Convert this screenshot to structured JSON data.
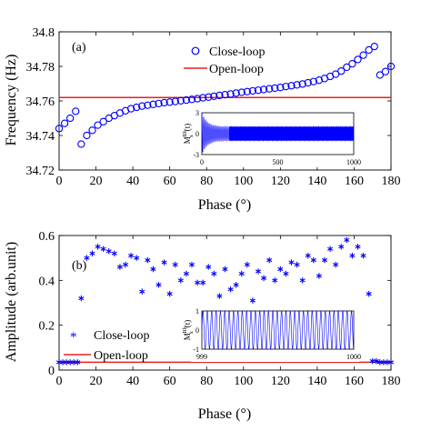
{
  "chart_data": [
    {
      "id": "a",
      "type": "scatter",
      "panel_label": "(a)",
      "xlabel": "Phase (°)",
      "ylabel": "Frequency (Hz)",
      "xlim": [
        0,
        180
      ],
      "ylim": [
        34.72,
        34.8
      ],
      "xticks": [
        0,
        20,
        40,
        60,
        80,
        100,
        120,
        140,
        160,
        180
      ],
      "yticks": [
        34.72,
        34.74,
        34.76,
        34.78,
        34.8
      ],
      "ytick_labels": [
        "34.72",
        "34.74",
        "34.76",
        "34.78",
        "34.8"
      ],
      "legend_position": "top-right",
      "series": [
        {
          "name": "Close-loop",
          "marker": "circle-open",
          "color": "#0000ff",
          "x": [
            0,
            3,
            6,
            9,
            12,
            15,
            18,
            21,
            24,
            27,
            30,
            33,
            36,
            39,
            42,
            45,
            48,
            51,
            54,
            57,
            60,
            63,
            66,
            69,
            72,
            75,
            78,
            81,
            84,
            87,
            90,
            93,
            96,
            99,
            102,
            105,
            108,
            111,
            114,
            117,
            120,
            123,
            126,
            129,
            132,
            135,
            138,
            141,
            144,
            147,
            150,
            153,
            156,
            159,
            162,
            165,
            168,
            171,
            174,
            177,
            180
          ],
          "y": [
            34.744,
            34.747,
            34.75,
            34.754,
            34.735,
            34.74,
            34.743,
            34.746,
            34.748,
            34.75,
            34.7515,
            34.753,
            34.7543,
            34.7555,
            34.7563,
            34.757,
            34.7575,
            34.758,
            34.7585,
            34.759,
            34.7593,
            34.7597,
            34.7601,
            34.7605,
            34.7609,
            34.7613,
            34.7618,
            34.7622,
            34.7627,
            34.7632,
            34.7636,
            34.764,
            34.7645,
            34.765,
            34.7654,
            34.7658,
            34.7662,
            34.7666,
            34.767,
            34.7674,
            34.7678,
            34.7683,
            34.7688,
            34.7693,
            34.7698,
            34.7705,
            34.7712,
            34.772,
            34.773,
            34.7742,
            34.7755,
            34.7773,
            34.7795,
            34.7815,
            34.784,
            34.7865,
            34.7895,
            34.7915,
            34.775,
            34.777,
            34.78
          ]
        },
        {
          "name": "Open-loop",
          "marker": "line",
          "color": "#e8211c",
          "y": 34.762
        }
      ],
      "inset": {
        "type": "line",
        "ylabel": "M_x^Rb(t)",
        "ylabel_main": "M",
        "ylabel_sup": "Rb",
        "ylabel_sub": "x",
        "ylabel_arg": "(t)",
        "xlim": [
          0,
          1000
        ],
        "ylim": [
          -3,
          3
        ],
        "xtick_labels": [
          "0",
          "500",
          "1000"
        ],
        "ytick_labels": [
          "3",
          "0",
          "-3"
        ],
        "steady_amplitude": 1,
        "initial_amplitude": 3,
        "color": "#0000ff"
      }
    },
    {
      "id": "b",
      "type": "scatter",
      "panel_label": "(b)",
      "xlabel": "Phase (°)",
      "ylabel": "Amplitude (arb.unit)",
      "xlim": [
        0,
        180
      ],
      "ylim": [
        0,
        0.6
      ],
      "xticks": [
        0,
        20,
        40,
        60,
        80,
        100,
        120,
        140,
        160,
        180
      ],
      "yticks": [
        0,
        0.2,
        0.4,
        0.6
      ],
      "ytick_labels": [
        "0",
        "0.2",
        "0.4",
        "0.6"
      ],
      "legend_position": "bottom-left",
      "series": [
        {
          "name": "Close-loop",
          "marker": "asterisk",
          "color": "#0000ff",
          "x": [
            0,
            2,
            4,
            6,
            8,
            10,
            12,
            15,
            18,
            21,
            24,
            27,
            30,
            33,
            36,
            39,
            42,
            45,
            48,
            51,
            54,
            57,
            60,
            63,
            66,
            69,
            72,
            75,
            78,
            81,
            84,
            87,
            90,
            93,
            96,
            99,
            102,
            105,
            108,
            111,
            114,
            117,
            120,
            123,
            126,
            129,
            132,
            135,
            138,
            141,
            144,
            147,
            150,
            153,
            156,
            159,
            162,
            165,
            168,
            170,
            172,
            174,
            176,
            178,
            180
          ],
          "y": [
            0.035,
            0.035,
            0.035,
            0.035,
            0.035,
            0.035,
            0.32,
            0.5,
            0.52,
            0.55,
            0.54,
            0.53,
            0.52,
            0.46,
            0.47,
            0.51,
            0.5,
            0.35,
            0.49,
            0.45,
            0.38,
            0.48,
            0.34,
            0.47,
            0.4,
            0.43,
            0.47,
            0.39,
            0.39,
            0.46,
            0.43,
            0.33,
            0.45,
            0.36,
            0.38,
            0.43,
            0.47,
            0.31,
            0.44,
            0.41,
            0.49,
            0.4,
            0.45,
            0.43,
            0.48,
            0.47,
            0.4,
            0.51,
            0.49,
            0.42,
            0.49,
            0.54,
            0.47,
            0.55,
            0.58,
            0.51,
            0.55,
            0.51,
            0.34,
            0.04,
            0.04,
            0.035,
            0.035,
            0.035,
            0.035
          ]
        },
        {
          "name": "Open-loop",
          "marker": "line",
          "color": "#e8211c",
          "y": 0.035
        }
      ],
      "inset": {
        "type": "line",
        "ylabel": "M_x^Rb(t)",
        "ylabel_main": "M",
        "ylabel_sup": "Rb",
        "ylabel_sub": "x",
        "ylabel_arg": "(t)",
        "xlim": [
          999,
          1000
        ],
        "ylim": [
          -1,
          1
        ],
        "xtick_labels": [
          "999",
          "1000"
        ],
        "ytick_labels": [
          "1",
          "0",
          "-1"
        ],
        "cycles": 34.76,
        "color": "#0000ff"
      }
    }
  ]
}
